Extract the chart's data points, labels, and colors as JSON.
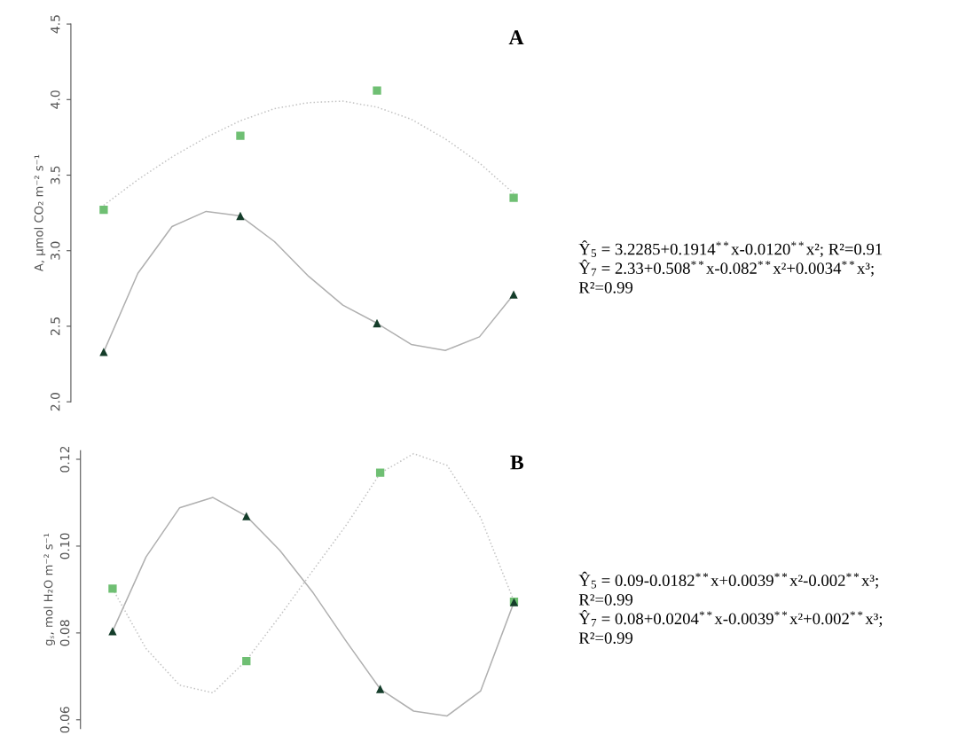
{
  "chart_data": [
    {
      "type": "scatter",
      "title": "A",
      "ylabel": "A, μmol CO₂ m⁻² s⁻¹",
      "categories": [
        null,
        null,
        null,
        null,
        null,
        null,
        null,
        null,
        null,
        null,
        null,
        null,
        null
      ],
      "ylim": [
        2.0,
        4.5
      ],
      "yticks": [
        {
          "value": 2.0,
          "label": "2.0"
        },
        {
          "value": 2.5,
          "label": "2.5"
        },
        {
          "value": 3.0,
          "label": "3.0"
        },
        {
          "value": 3.5,
          "label": "3.5"
        },
        {
          "value": 4.0,
          "label": "4.0"
        },
        {
          "value": 4.5,
          "label": "4.5"
        }
      ],
      "tick_labels": "y",
      "grid": false,
      "legend": false,
      "series": [
        {
          "type": "line",
          "color": "#c4c4c4",
          "line_style": "dotted",
          "marker": "none",
          "values": [
            3.3,
            3.47,
            3.62,
            3.75,
            3.86,
            3.94,
            3.98,
            3.99,
            3.95,
            3.87,
            3.74,
            3.58,
            3.38
          ]
        },
        {
          "type": "line",
          "color": "#b0b0b0",
          "line_style": "solid",
          "marker": "none",
          "values": [
            2.33,
            2.85,
            3.16,
            3.26,
            3.23,
            3.06,
            2.83,
            2.64,
            2.52,
            2.38,
            2.34,
            2.43,
            2.71
          ]
        },
        {
          "color": "#6fbf73",
          "marker": "square",
          "values": [
            3.27,
            null,
            null,
            null,
            3.76,
            null,
            null,
            null,
            4.06,
            null,
            null,
            null,
            3.35
          ]
        },
        {
          "color": "#143d2a",
          "marker": "triangle",
          "values": [
            2.33,
            null,
            null,
            null,
            3.23,
            null,
            null,
            null,
            2.52,
            null,
            null,
            null,
            2.71
          ]
        }
      ],
      "annotations": [
        "Ŷ$_{5}$ = 3.2285+0.1914$^{**}$x-0.0120$^{**}$x²; R²=0.91",
        "Ŷ$_{7}$ = 2.33+0.508$^{**}$x-0.082$^{**}$x²+0.0034$^{**}$x³;",
        "R²=0.99"
      ]
    },
    {
      "type": "scatter",
      "title": "B",
      "ylabel": "g$_{s}$, mol H₂O m⁻² s⁻¹",
      "categories": [
        null,
        null,
        null,
        null,
        null,
        null,
        null,
        null,
        null,
        null,
        null,
        null,
        null
      ],
      "ylim": [
        0.058,
        0.122
      ],
      "yticks": [
        0.06,
        0.08,
        {
          "value": 0.1,
          "label": "0.10"
        },
        0.12
      ],
      "tick_labels": "y",
      "grid": false,
      "legend": false,
      "series": [
        {
          "type": "line",
          "color": "#c4c4c4",
          "line_style": "dotted",
          "marker": "none",
          "values": [
            0.0902,
            0.0764,
            0.068,
            0.0662,
            0.0737,
            0.0839,
            0.0945,
            0.105,
            0.1168,
            0.1213,
            0.1186,
            0.1066,
            0.0873
          ]
        },
        {
          "type": "line",
          "color": "#b0b0b0",
          "line_style": "solid",
          "marker": "none",
          "values": [
            0.0804,
            0.0975,
            0.1088,
            0.1112,
            0.1069,
            0.099,
            0.0892,
            0.0779,
            0.0671,
            0.062,
            0.0609,
            0.0666,
            0.0871
          ]
        },
        {
          "color": "#6fbf73",
          "marker": "square",
          "values": [
            0.0902,
            null,
            null,
            null,
            0.0735,
            null,
            null,
            null,
            0.1169,
            null,
            null,
            null,
            0.0872
          ]
        },
        {
          "color": "#143d2a",
          "marker": "triangle",
          "values": [
            0.0804,
            null,
            null,
            null,
            0.1069,
            null,
            null,
            null,
            0.0671,
            null,
            null,
            null,
            0.0871
          ]
        }
      ],
      "annotations": [
        "Ŷ$_{5}$ = 0.09-0.0182$^{**}$x+0.0039$^{**}$x²-0.002$^{**}$x³;",
        "R²=0.99",
        "Ŷ$_{7}$ = 0.08+0.0204$^{**}$x-0.0039$^{**}$x²+0.002$^{**}$x³;",
        "R²=0.99"
      ]
    }
  ]
}
